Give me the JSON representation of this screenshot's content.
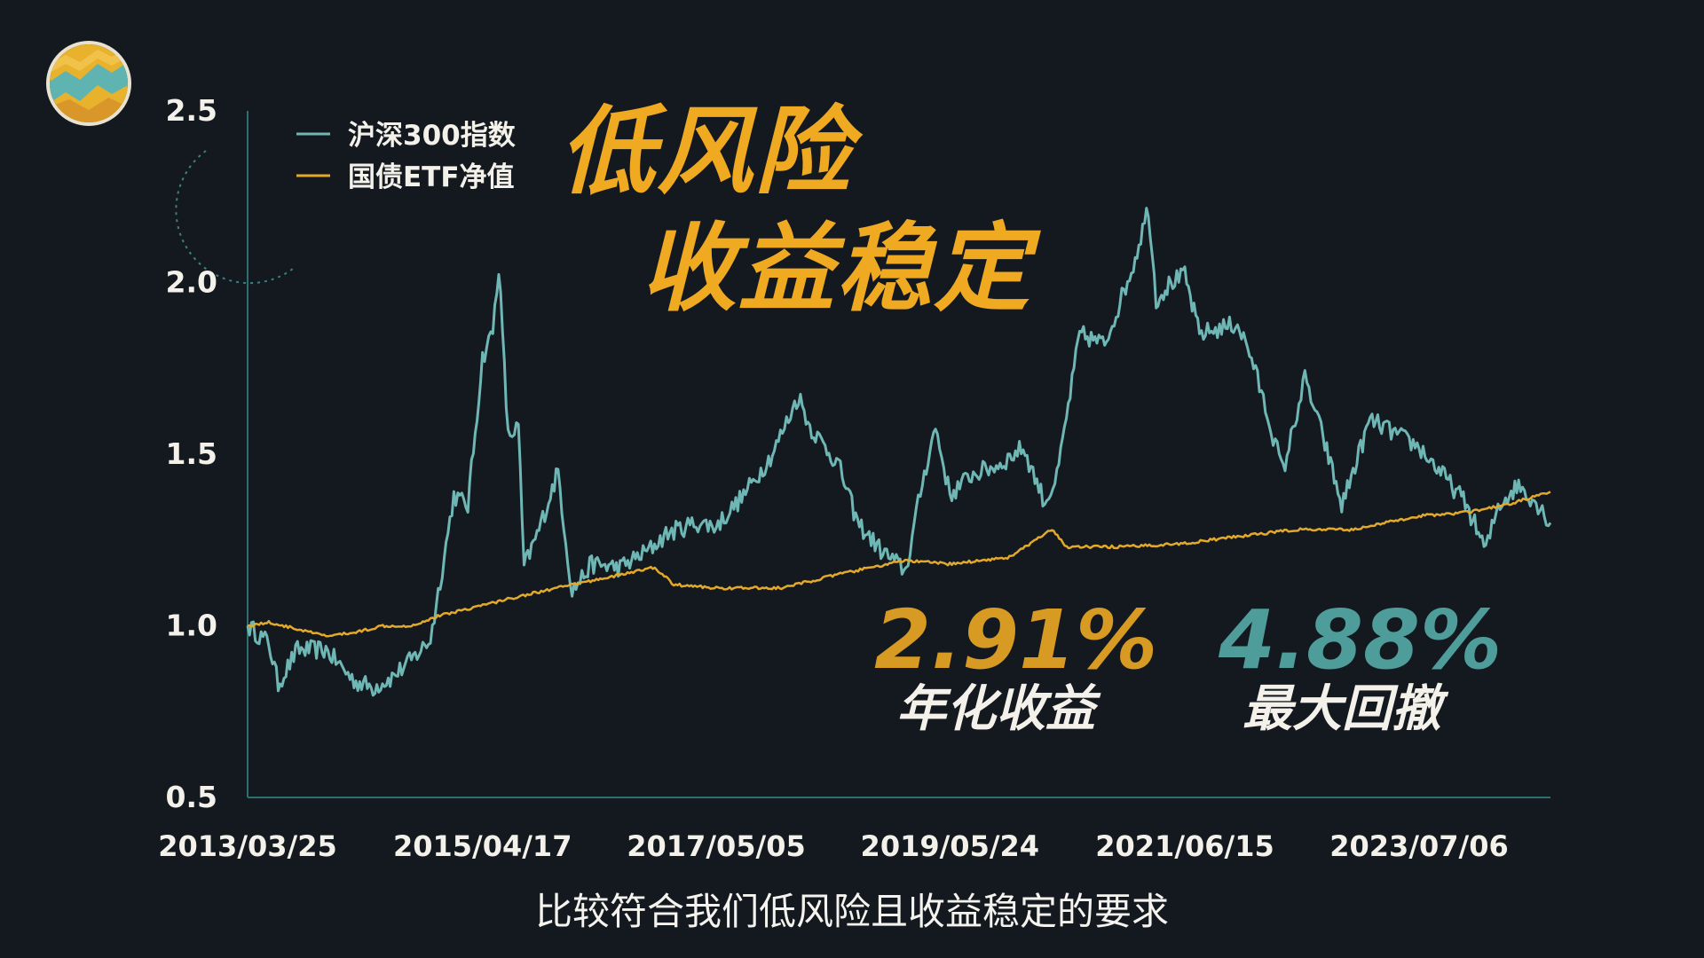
{
  "headline": {
    "line1": "低风险",
    "line2": "收益稳定"
  },
  "stats": [
    {
      "value": "2.91%",
      "label": "年化收益",
      "color": "#d79a22"
    },
    {
      "value": "4.88%",
      "label": "最大回撤",
      "color": "#4f9d9b"
    }
  ],
  "subtitle": "比较符合我们低风险且收益稳定的要求",
  "colors": {
    "background": "#141920",
    "index_line": "#6fb7b5",
    "bond_line": "#e2a92a",
    "axis_text": "#f3f1ea",
    "headline": "#f0aa22"
  },
  "chart_data": {
    "type": "line",
    "xlabel": "",
    "ylabel": "",
    "ylim": [
      0.5,
      2.5
    ],
    "y_ticks": [
      "0.5",
      "1.0",
      "1.5",
      "2.0",
      "2.5"
    ],
    "x_ticks": [
      "2013/03/25",
      "2015/04/17",
      "2017/05/05",
      "2019/05/24",
      "2021/06/15",
      "2023/07/06"
    ],
    "x_range": [
      "2013/03/25",
      "2024/08/30"
    ],
    "legend_position": "top-left",
    "series": [
      {
        "name": "沪深300指数",
        "color": "#6fb7b5",
        "points": [
          [
            "2013/03/25",
            1.0
          ],
          [
            "2013/06/01",
            0.95
          ],
          [
            "2013/07/01",
            0.83
          ],
          [
            "2013/09/01",
            0.93
          ],
          [
            "2013/12/01",
            0.93
          ],
          [
            "2014/03/01",
            0.84
          ],
          [
            "2014/05/01",
            0.82
          ],
          [
            "2014/07/01",
            0.85
          ],
          [
            "2014/09/01",
            0.9
          ],
          [
            "2014/11/01",
            0.96
          ],
          [
            "2014/12/15",
            1.2
          ],
          [
            "2015/01/15",
            1.38
          ],
          [
            "2015/03/01",
            1.35
          ],
          [
            "2015/04/17",
            1.78
          ],
          [
            "2015/05/20",
            1.86
          ],
          [
            "2015/06/08",
            2.05
          ],
          [
            "2015/07/08",
            1.55
          ],
          [
            "2015/08/10",
            1.58
          ],
          [
            "2015/08/28",
            1.17
          ],
          [
            "2015/10/15",
            1.28
          ],
          [
            "2015/12/15",
            1.45
          ],
          [
            "2016/01/15",
            1.2
          ],
          [
            "2016/01/29",
            1.1
          ],
          [
            "2016/04/01",
            1.18
          ],
          [
            "2016/07/01",
            1.17
          ],
          [
            "2016/10/01",
            1.22
          ],
          [
            "2016/12/01",
            1.27
          ],
          [
            "2017/03/01",
            1.3
          ],
          [
            "2017/05/05",
            1.29
          ],
          [
            "2017/08/01",
            1.38
          ],
          [
            "2017/11/01",
            1.5
          ],
          [
            "2018/01/24",
            1.67
          ],
          [
            "2018/03/01",
            1.58
          ],
          [
            "2018/06/01",
            1.47
          ],
          [
            "2018/08/01",
            1.3
          ],
          [
            "2018/10/15",
            1.22
          ],
          [
            "2019/01/03",
            1.16
          ],
          [
            "2019/02/25",
            1.42
          ],
          [
            "2019/04/08",
            1.58
          ],
          [
            "2019/05/24",
            1.38
          ],
          [
            "2019/08/01",
            1.44
          ],
          [
            "2019/11/01",
            1.47
          ],
          [
            "2020/01/14",
            1.52
          ],
          [
            "2020/03/23",
            1.36
          ],
          [
            "2020/05/01",
            1.43
          ],
          [
            "2020/07/13",
            1.85
          ],
          [
            "2020/10/01",
            1.82
          ],
          [
            "2021/01/01",
            2.05
          ],
          [
            "2021/02/18",
            2.22
          ],
          [
            "2021/03/15",
            1.95
          ],
          [
            "2021/05/01",
            2.0
          ],
          [
            "2021/06/15",
            2.02
          ],
          [
            "2021/08/01",
            1.85
          ],
          [
            "2021/12/01",
            1.88
          ],
          [
            "2022/01/15",
            1.78
          ],
          [
            "2022/04/26",
            1.45
          ],
          [
            "2022/07/05",
            1.72
          ],
          [
            "2022/09/01",
            1.55
          ],
          [
            "2022/10/31",
            1.35
          ],
          [
            "2023/01/30",
            1.6
          ],
          [
            "2023/04/01",
            1.57
          ],
          [
            "2023/07/06",
            1.52
          ],
          [
            "2023/09/01",
            1.46
          ],
          [
            "2023/12/01",
            1.36
          ],
          [
            "2024/02/05",
            1.22
          ],
          [
            "2024/03/15",
            1.35
          ],
          [
            "2024/05/20",
            1.41
          ],
          [
            "2024/07/15",
            1.36
          ],
          [
            "2024/08/30",
            1.3
          ]
        ]
      },
      {
        "name": "国债ETF净值",
        "color": "#e2a92a",
        "points": [
          [
            "2013/03/25",
            1.0
          ],
          [
            "2013/06/01",
            1.01
          ],
          [
            "2013/09/01",
            0.99
          ],
          [
            "2013/12/01",
            0.97
          ],
          [
            "2014/03/01",
            0.98
          ],
          [
            "2014/06/01",
            1.0
          ],
          [
            "2014/09/01",
            1.0
          ],
          [
            "2014/12/01",
            1.03
          ],
          [
            "2015/04/17",
            1.06
          ],
          [
            "2015/09/01",
            1.09
          ],
          [
            "2016/02/01",
            1.12
          ],
          [
            "2016/10/20",
            1.17
          ],
          [
            "2016/12/20",
            1.12
          ],
          [
            "2017/05/05",
            1.11
          ],
          [
            "2017/12/01",
            1.11
          ],
          [
            "2018/06/01",
            1.15
          ],
          [
            "2019/01/01",
            1.19
          ],
          [
            "2019/05/24",
            1.18
          ],
          [
            "2019/12/01",
            1.2
          ],
          [
            "2020/04/15",
            1.28
          ],
          [
            "2020/06/01",
            1.23
          ],
          [
            "2020/12/01",
            1.23
          ],
          [
            "2021/06/15",
            1.24
          ],
          [
            "2021/12/01",
            1.26
          ],
          [
            "2022/06/01",
            1.28
          ],
          [
            "2022/12/01",
            1.28
          ],
          [
            "2023/07/06",
            1.32
          ],
          [
            "2023/12/01",
            1.33
          ],
          [
            "2024/04/01",
            1.35
          ],
          [
            "2024/08/30",
            1.39
          ]
        ]
      }
    ]
  }
}
